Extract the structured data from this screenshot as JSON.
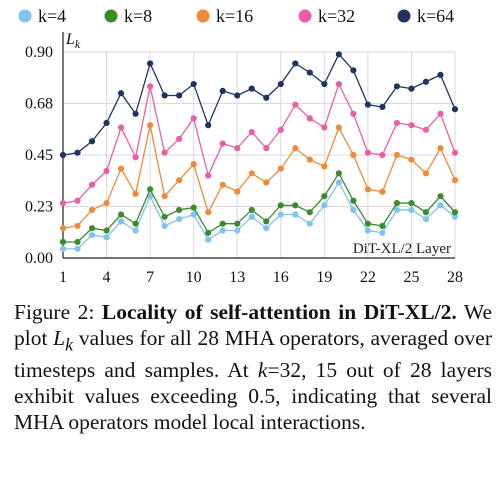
{
  "chart_data": {
    "type": "line",
    "title": "",
    "ylabel": "L",
    "ylabel_sub": "k",
    "xlabel": "",
    "annotation": "DiT-XL/2 Layer",
    "x": [
      1,
      2,
      3,
      4,
      5,
      6,
      7,
      8,
      9,
      10,
      11,
      12,
      13,
      14,
      15,
      16,
      17,
      18,
      19,
      20,
      21,
      22,
      23,
      24,
      25,
      26,
      27,
      28
    ],
    "xticks": [
      1,
      4,
      7,
      10,
      13,
      16,
      19,
      22,
      25,
      28
    ],
    "xtick_labels": [
      "1",
      "4",
      "7",
      "10",
      "13",
      "16",
      "19",
      "22",
      "25",
      "28"
    ],
    "yticks": [
      0.0,
      0.225,
      0.45,
      0.675,
      0.9
    ],
    "ytick_labels": [
      "0.00",
      "0.23",
      "0.45",
      "0.68",
      "0.90"
    ],
    "ylim": [
      0,
      0.9
    ],
    "grid": true,
    "legend_position": "top",
    "series": [
      {
        "name": "k=4",
        "color": "#7ec4ee",
        "values": [
          0.04,
          0.04,
          0.1,
          0.09,
          0.16,
          0.12,
          0.27,
          0.14,
          0.17,
          0.19,
          0.08,
          0.12,
          0.12,
          0.18,
          0.13,
          0.19,
          0.19,
          0.15,
          0.23,
          0.33,
          0.21,
          0.12,
          0.11,
          0.21,
          0.21,
          0.17,
          0.23,
          0.18
        ]
      },
      {
        "name": "k=8",
        "color": "#3c8a2e",
        "values": [
          0.07,
          0.07,
          0.13,
          0.12,
          0.19,
          0.15,
          0.3,
          0.18,
          0.21,
          0.22,
          0.11,
          0.15,
          0.15,
          0.21,
          0.16,
          0.23,
          0.23,
          0.2,
          0.27,
          0.37,
          0.25,
          0.15,
          0.14,
          0.24,
          0.24,
          0.2,
          0.27,
          0.2
        ]
      },
      {
        "name": "k=16",
        "color": "#ee8a3a",
        "values": [
          0.13,
          0.14,
          0.21,
          0.24,
          0.39,
          0.28,
          0.58,
          0.27,
          0.34,
          0.41,
          0.2,
          0.32,
          0.29,
          0.37,
          0.33,
          0.39,
          0.48,
          0.43,
          0.4,
          0.57,
          0.45,
          0.3,
          0.29,
          0.45,
          0.43,
          0.37,
          0.48,
          0.34
        ]
      },
      {
        "name": "k=32",
        "color": "#ec5da8",
        "values": [
          0.24,
          0.25,
          0.32,
          0.38,
          0.57,
          0.44,
          0.75,
          0.46,
          0.52,
          0.61,
          0.36,
          0.5,
          0.48,
          0.55,
          0.48,
          0.56,
          0.67,
          0.61,
          0.57,
          0.76,
          0.63,
          0.46,
          0.45,
          0.59,
          0.58,
          0.56,
          0.63,
          0.46
        ]
      },
      {
        "name": "k=64",
        "color": "#1f3460",
        "values": [
          0.45,
          0.46,
          0.51,
          0.59,
          0.72,
          0.63,
          0.85,
          0.71,
          0.71,
          0.76,
          0.58,
          0.73,
          0.71,
          0.74,
          0.7,
          0.76,
          0.85,
          0.81,
          0.76,
          0.89,
          0.82,
          0.67,
          0.66,
          0.75,
          0.74,
          0.77,
          0.8,
          0.65
        ]
      }
    ]
  },
  "caption": {
    "label": "Figure 2:",
    "bold_title": "Locality of self-attention in DiT-XL/2.",
    "text_1": " We plot ",
    "var": "L",
    "var_sub": "k",
    "text_2": " values for all 28 MHA operators, averaged over timesteps and samples. At ",
    "k_var": "k",
    "text_3": "=32, 15 out of 28 layers exhibit values exceeding 0.5, indicating that several MHA operators model local interactions."
  }
}
